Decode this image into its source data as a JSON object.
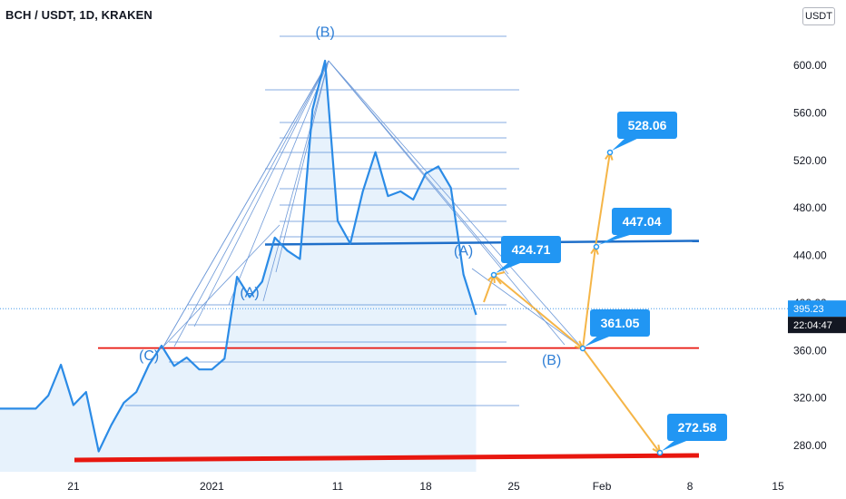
{
  "header": {
    "symbol_title": "BCH / USDT, 1D, KRAKEN",
    "currency_button": "USDT"
  },
  "colors": {
    "price_line": "#2b8be6",
    "area_fill": "#e3f0fc",
    "fib_lines": "#5b8fd9",
    "fan_lines": "#6f9ad8",
    "support_line": "#e8170f",
    "resistance_line": "#1f6fc9",
    "projection_arrows": "#f5b547",
    "label_bg": "#2196f3",
    "price_tag_bg": "#131722"
  },
  "chart_data": {
    "type": "line",
    "x_axis": {
      "tick_labels": [
        "21",
        "2021",
        "11",
        "18",
        "25",
        "Feb",
        "8",
        "15"
      ],
      "tick_dates": [
        "2020-12-21",
        "2021-01-01",
        "2021-01-11",
        "2021-01-18",
        "2021-01-25",
        "2021-02-01",
        "2021-02-08",
        "2021-02-15"
      ]
    },
    "y_axis": {
      "tick_labels": [
        "280.00",
        "320.00",
        "360.00",
        "400.00",
        "440.00",
        "480.00",
        "520.00",
        "560.00",
        "600.00"
      ],
      "tick_values": [
        280,
        320,
        360,
        400,
        440,
        480,
        520,
        560,
        600
      ],
      "ylim": [
        267,
        640
      ]
    },
    "series": [
      {
        "values": [
          {
            "date": "2020-12-14",
            "price": 292
          },
          {
            "date": "2020-12-15",
            "price": 311
          },
          {
            "date": "2020-12-17",
            "price": 311
          },
          {
            "date": "2020-12-18",
            "price": 311
          },
          {
            "date": "2020-12-19",
            "price": 322
          },
          {
            "date": "2020-12-20",
            "price": 348
          },
          {
            "date": "2020-12-21",
            "price": 314
          },
          {
            "date": "2020-12-22",
            "price": 325
          },
          {
            "date": "2020-12-23",
            "price": 275
          },
          {
            "date": "2020-12-24",
            "price": 297
          },
          {
            "date": "2020-12-25",
            "price": 316
          },
          {
            "date": "2020-12-26",
            "price": 325
          },
          {
            "date": "2020-12-27",
            "price": 348
          },
          {
            "date": "2020-12-28",
            "price": 364
          },
          {
            "date": "2020-12-29",
            "price": 347
          },
          {
            "date": "2020-12-30",
            "price": 354
          },
          {
            "date": "2020-12-31",
            "price": 344
          },
          {
            "date": "2021-01-01",
            "price": 344
          },
          {
            "date": "2021-01-02",
            "price": 353
          },
          {
            "date": "2021-01-03",
            "price": 422
          },
          {
            "date": "2021-01-04",
            "price": 405
          },
          {
            "date": "2021-01-05",
            "price": 418
          },
          {
            "date": "2021-01-06",
            "price": 455
          },
          {
            "date": "2021-01-07",
            "price": 444
          },
          {
            "date": "2021-01-08",
            "price": 437
          },
          {
            "date": "2021-01-09",
            "price": 563
          },
          {
            "date": "2021-01-10",
            "price": 604
          },
          {
            "date": "2021-01-11",
            "price": 469
          },
          {
            "date": "2021-01-12",
            "price": 450
          },
          {
            "date": "2021-01-13",
            "price": 494
          },
          {
            "date": "2021-01-14",
            "price": 527
          },
          {
            "date": "2021-01-15",
            "price": 490
          },
          {
            "date": "2021-01-16",
            "price": 494
          },
          {
            "date": "2021-01-17",
            "price": 487
          },
          {
            "date": "2021-01-18",
            "price": 509
          },
          {
            "date": "2021-01-19",
            "price": 515
          },
          {
            "date": "2021-01-20",
            "price": 497
          },
          {
            "date": "2021-01-21",
            "price": 424
          },
          {
            "date": "2021-01-22",
            "price": 390
          }
        ]
      }
    ],
    "horizontal_levels": {
      "resistance": 450,
      "support": 362,
      "long_term_support": 268
    },
    "price_labels": [
      {
        "text": "528.06",
        "price": 528.06
      },
      {
        "text": "447.04",
        "price": 447.04
      },
      {
        "text": "424.71",
        "price": 424.71
      },
      {
        "text": "361.05",
        "price": 361.05
      },
      {
        "text": "272.58",
        "price": 272.58
      }
    ],
    "wave_labels": [
      {
        "text": "(B)",
        "date": "2021-01-10",
        "price": 624
      },
      {
        "text": "(A)",
        "date": "2021-01-04",
        "price": 405
      },
      {
        "text": "(C)",
        "date": "2020-12-27",
        "price": 352
      },
      {
        "text": "(A)",
        "date": "2021-01-21",
        "price": 440
      },
      {
        "text": "(B)",
        "date": "2021-01-28",
        "price": 348
      }
    ],
    "price_tags": {
      "last_price": "395.23",
      "countdown": "22:04:47"
    },
    "grid": false
  }
}
